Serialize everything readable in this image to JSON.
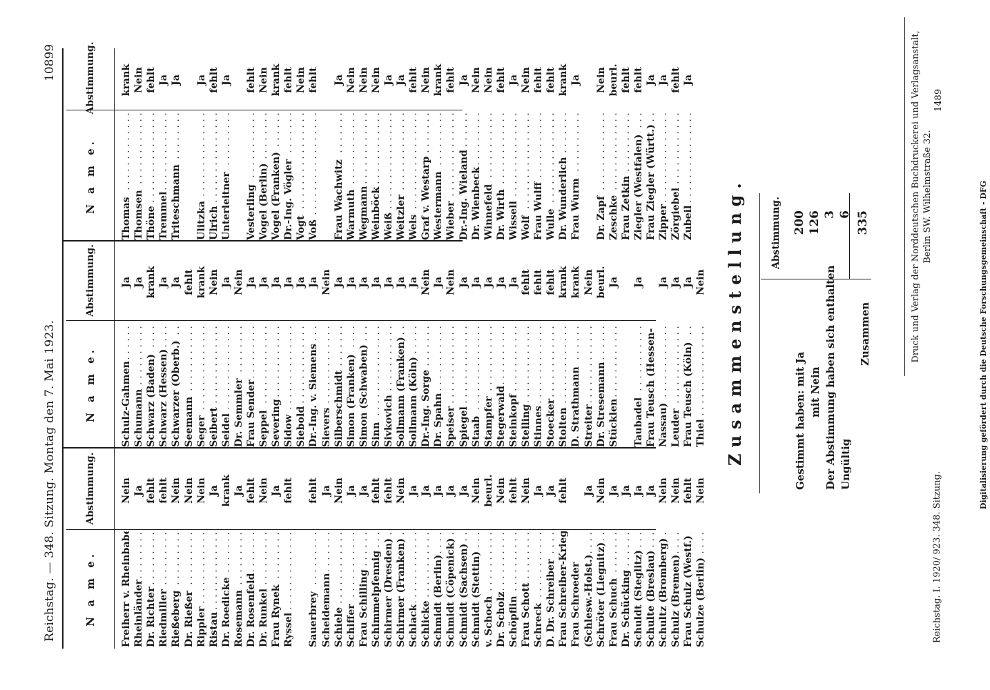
{
  "header": {
    "left": "Reichstag. — 348. Sitzung. Montag den 7. Mai 1923.",
    "page_number": "10899"
  },
  "columns": {
    "name_heading": "N a m e.",
    "vote_heading": "Abstimmung."
  },
  "col1": [
    {
      "name": "Freiherr v. Rheinbaben",
      "vote": "Nein"
    },
    {
      "name": "Rheinländer",
      "vote": "Ja"
    },
    {
      "name": "Dr. Richter",
      "vote": "fehlt"
    },
    {
      "name": "Riedmiller",
      "vote": "fehlt"
    },
    {
      "name": "Rießeberg",
      "vote": "Nein"
    },
    {
      "name": "Dr. Rießer",
      "vote": "Nein"
    },
    {
      "name": "Rippler",
      "vote": "Nein"
    },
    {
      "name": "Ristau",
      "vote": "Ja"
    },
    {
      "name": "Dr. Roedicke",
      "vote": "krank"
    },
    {
      "name": "Rosemann",
      "vote": "Ja"
    },
    {
      "name": "Dr. Rosenfeld",
      "vote": "fehlt"
    },
    {
      "name": "Dr. Runkel",
      "vote": "Nein"
    },
    {
      "name": "Frau Rynek",
      "vote": "Ja"
    },
    {
      "name": "Ryssel",
      "vote": "fehlt"
    },
    {
      "name": "",
      "vote": ""
    },
    {
      "name": "Sauerbrey",
      "vote": "fehlt"
    },
    {
      "name": "Scheidemann",
      "vote": "Ja"
    },
    {
      "name": "Schiele",
      "vote": "Nein"
    },
    {
      "name": "Schiffer",
      "vote": "Ja"
    },
    {
      "name": "Frau Schilling",
      "vote": "Ja"
    },
    {
      "name": "Schimmelpfennig",
      "vote": "fehlt"
    },
    {
      "name": "Schirmer (Dresden)",
      "vote": "fehlt"
    },
    {
      "name": "Schirmer (Franken)",
      "vote": "Nein"
    },
    {
      "name": "Schlack",
      "vote": "Ja"
    },
    {
      "name": "Schlicke",
      "vote": "Ja"
    },
    {
      "name": "Schmidt (Berlin)",
      "vote": "Ja"
    },
    {
      "name": "Schmidt (Cöpenick)",
      "vote": "Ja"
    },
    {
      "name": "Schmidt (Sachsen)",
      "vote": "Ja"
    },
    {
      "name": "Schmidt (Stettin)",
      "vote": "Nein"
    },
    {
      "name": "v. Schoch",
      "vote": "beurl."
    },
    {
      "name": "Dr. Scholz",
      "vote": "Nein"
    },
    {
      "name": "Schöpflin",
      "vote": "fehlt"
    },
    {
      "name": "Frau Schott",
      "vote": "Nein"
    },
    {
      "name": "Schreck",
      "vote": "Ja"
    },
    {
      "name": "D. Dr. Schreiber",
      "vote": "Ja"
    },
    {
      "name": "Frau Schreiber-Krieger",
      "vote": "fehlt"
    },
    {
      "name": "Frau Schroeder",
      "vote": ""
    },
    {
      "name": "(Schlesw.-Holst.)",
      "vote": "Ja"
    },
    {
      "name": "Schröter (Liegnitz)",
      "vote": "Nein"
    },
    {
      "name": "Frau Schuch",
      "vote": "Ja"
    },
    {
      "name": "Dr. Schücking",
      "vote": "Ja"
    },
    {
      "name": "Schuldt (Steglitz)",
      "vote": "Ja"
    },
    {
      "name": "Schulte (Breslau)",
      "vote": "Ja"
    },
    {
      "name": "Schultz (Bromberg)",
      "vote": "Nein"
    },
    {
      "name": "Schulz (Bremen)",
      "vote": "Nein"
    },
    {
      "name": "Frau Schulz (Westf.)",
      "vote": "fehlt"
    },
    {
      "name": "Schulze (Berlin)",
      "vote": "Nein"
    }
  ],
  "col2": [
    {
      "name": "Schulz-Gahmen",
      "vote": "Ja"
    },
    {
      "name": "Schumann",
      "vote": "Ja"
    },
    {
      "name": "Schwarz (Baden)",
      "vote": "krank"
    },
    {
      "name": "Schwarz (Hessen)",
      "vote": "Ja"
    },
    {
      "name": "Schwarzer (Oberb.)",
      "vote": "Ja"
    },
    {
      "name": "Seemann",
      "vote": "fehlt"
    },
    {
      "name": "Seger",
      "vote": "krank"
    },
    {
      "name": "Seibert",
      "vote": "Nein"
    },
    {
      "name": "Seidel",
      "vote": "Ja"
    },
    {
      "name": "Dr. Semmler",
      "vote": "Nein"
    },
    {
      "name": "Frau Sender",
      "vote": "Ja"
    },
    {
      "name": "Seppel",
      "vote": "Ja"
    },
    {
      "name": "Severing",
      "vote": "Ja"
    },
    {
      "name": "Sidow",
      "vote": "Ja"
    },
    {
      "name": "Siebold",
      "vote": "Ja"
    },
    {
      "name": "Dr.-Ing. v. Siemens",
      "vote": "Ja"
    },
    {
      "name": "Sievers",
      "vote": "Nein"
    },
    {
      "name": "Silberschmidt",
      "vote": "Ja"
    },
    {
      "name": "Simon (Franken)",
      "vote": "Ja"
    },
    {
      "name": "Simon (Schwaben)",
      "vote": "Ja"
    },
    {
      "name": "Sinn",
      "vote": "Ja"
    },
    {
      "name": "Sivkovich",
      "vote": "Ja"
    },
    {
      "name": "Sollmann (Franken)",
      "vote": "Ja"
    },
    {
      "name": "Sollmann (Köln)",
      "vote": "Ja"
    },
    {
      "name": "Dr.-Ing. Sorge",
      "vote": "Nein"
    },
    {
      "name": "Dr. Spahn",
      "vote": "Ja"
    },
    {
      "name": "Speiser",
      "vote": "Nein"
    },
    {
      "name": "Spiegel",
      "vote": "Ja"
    },
    {
      "name": "Staab",
      "vote": "Ja"
    },
    {
      "name": "Stampfer",
      "vote": "Ja"
    },
    {
      "name": "Stegerwald",
      "vote": "Ja"
    },
    {
      "name": "Steinkopf",
      "vote": "Ja"
    },
    {
      "name": "Stelling",
      "vote": "fehlt"
    },
    {
      "name": "Stinnes",
      "vote": "fehlt"
    },
    {
      "name": "Stoecker",
      "vote": "fehlt"
    },
    {
      "name": "Stolten",
      "vote": "krank"
    },
    {
      "name": "D. Strathmann",
      "vote": "krank"
    },
    {
      "name": "Streiter",
      "vote": "Nein"
    },
    {
      "name": "Dr. Stresemann",
      "vote": "beurl."
    },
    {
      "name": "Stücklen",
      "vote": "Ja"
    },
    {
      "name": "",
      "vote": ""
    },
    {
      "name": "Taubadel",
      "vote": "Ja"
    },
    {
      "name": "Frau Teusch (Hessen-",
      "vote": ""
    },
    {
      "name": "Nassau)",
      "vote": "Ja"
    },
    {
      "name": "Leuder",
      "vote": "Ja"
    },
    {
      "name": "Frau Teusch (Köln)",
      "vote": "Ja"
    },
    {
      "name": "Thiel",
      "vote": "Nein"
    }
  ],
  "col3": [
    {
      "name": "Thomas",
      "vote": "krank"
    },
    {
      "name": "Thomsen",
      "vote": "Nein"
    },
    {
      "name": "Thöne",
      "vote": "fehlt"
    },
    {
      "name": "Tremmel",
      "vote": "Ja"
    },
    {
      "name": "Triteschmann",
      "vote": "Ja"
    },
    {
      "name": "",
      "vote": ""
    },
    {
      "name": "Ulitzka",
      "vote": "Ja"
    },
    {
      "name": "Ulrich",
      "vote": "fehlt"
    },
    {
      "name": "Unterleitner",
      "vote": "Ja"
    },
    {
      "name": "",
      "vote": ""
    },
    {
      "name": "Vesterling",
      "vote": "fehlt"
    },
    {
      "name": "Vogel (Berlin)",
      "vote": "Nein"
    },
    {
      "name": "Vogel (Franken)",
      "vote": "krank"
    },
    {
      "name": "Dr.-Ing. Vögler",
      "vote": "fehlt"
    },
    {
      "name": "Vogt",
      "vote": "Nein"
    },
    {
      "name": "Voß",
      "vote": "fehlt"
    },
    {
      "name": "",
      "vote": ""
    },
    {
      "name": "Frau Wachwitz",
      "vote": "Ja"
    },
    {
      "name": "Warmuth",
      "vote": "Nein"
    },
    {
      "name": "Wegmann",
      "vote": "Nein"
    },
    {
      "name": "Weinböck",
      "vote": "Nein"
    },
    {
      "name": "Weiß",
      "vote": "Ja"
    },
    {
      "name": "Weitzler",
      "vote": "Ja"
    },
    {
      "name": "Wels",
      "vote": "fehlt"
    },
    {
      "name": "Graf v. Westarp",
      "vote": "Nein"
    },
    {
      "name": "Westermann",
      "vote": "krank"
    },
    {
      "name": "Wieber",
      "vote": "fehlt"
    },
    {
      "name": "Dr.-Ing. Wieland",
      "vote": "Ja"
    },
    {
      "name": "Dr. Wienbeck",
      "vote": "Nein"
    },
    {
      "name": "Winnefeld",
      "vote": "Nein"
    },
    {
      "name": "Dr. Wirth",
      "vote": "fehlt"
    },
    {
      "name": "Wissell",
      "vote": "Ja"
    },
    {
      "name": "Wolf",
      "vote": "Nein"
    },
    {
      "name": "Frau Wulff",
      "vote": "fehlt"
    },
    {
      "name": "Wulle",
      "vote": "fehlt"
    },
    {
      "name": "Dr. Wunderlich",
      "vote": "krank"
    },
    {
      "name": "Frau Wurm",
      "vote": "Ja"
    },
    {
      "name": "",
      "vote": ""
    },
    {
      "name": "Dr. Zapf",
      "vote": "Nein"
    },
    {
      "name": "Zeschke",
      "vote": "beurl."
    },
    {
      "name": "Frau Zetkin",
      "vote": "fehlt"
    },
    {
      "name": "Ziegler (Westfalen)",
      "vote": "fehlt"
    },
    {
      "name": "Frau Ziegler (Württ.)",
      "vote": "Ja"
    },
    {
      "name": "Zipper",
      "vote": "Ja"
    },
    {
      "name": "Zörgiebel",
      "vote": "fehlt"
    },
    {
      "name": "Zubeil",
      "vote": "Ja"
    }
  ],
  "summary": {
    "title": "Zusammenstellung.",
    "vote_heading": "Abstimmung.",
    "lines": [
      {
        "label": "Gestimmt haben: mit Ja",
        "value": "200"
      },
      {
        "label": "mit Nein",
        "value": "126"
      },
      {
        "label": "Der Abstimmung haben sich enthalten",
        "value": "3"
      },
      {
        "label": "Ungültig",
        "value": "6"
      }
    ],
    "total_label": "Zusammen",
    "total_value": "335"
  },
  "footer": {
    "left": "Reichstag. I. 1920/ 923. 348. Sitzung.",
    "right_line1": "Druck und Verlag der Norddeutschen Buchdruckerei und Verlagsanstalt,",
    "right_line2": "Berlin SW. Wilhelmstraße 32.",
    "number": "1489"
  },
  "side_note": "Digitalisierung gefördert durch die Deutsche Forschungsgemeinschaft - DFG"
}
